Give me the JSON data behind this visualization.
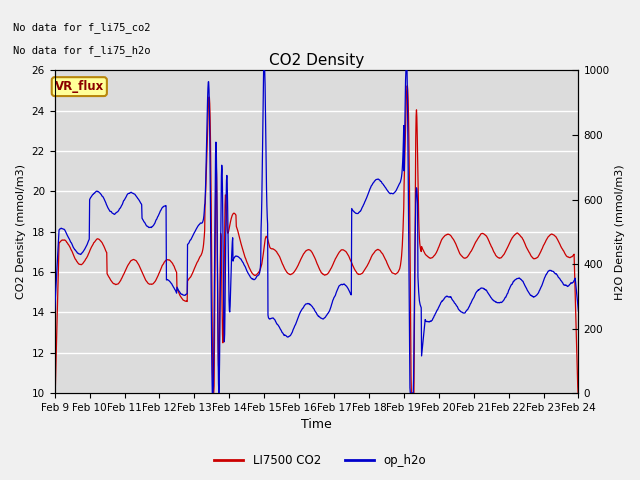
{
  "title": "CO2 Density",
  "xlabel": "Time",
  "ylabel_left": "CO2 Density (mmol/m3)",
  "ylabel_right": "H2O Density (mmol/m3)",
  "top_text": [
    "No data for f_li75_co2",
    "No data for f_li75_h2o"
  ],
  "box_label": "VR_flux",
  "legend_entries": [
    "LI7500 CO2",
    "op_h2o"
  ],
  "co2_color": "#cc0000",
  "h2o_color": "#0000cc",
  "ylim_left": [
    10,
    26
  ],
  "ylim_right": [
    0,
    1000
  ],
  "xtick_labels": [
    "Feb 9",
    "Feb 10",
    "Feb 11",
    "Feb 12",
    "Feb 13",
    "Feb 14",
    "Feb 15",
    "Feb 16",
    "Feb 17",
    "Feb 18",
    "Feb 19",
    "Feb 20",
    "Feb 21",
    "Feb 22",
    "Feb 23",
    "Feb 24"
  ],
  "bg_color": "#dcdcdc",
  "fig_bg": "#f0f0f0"
}
